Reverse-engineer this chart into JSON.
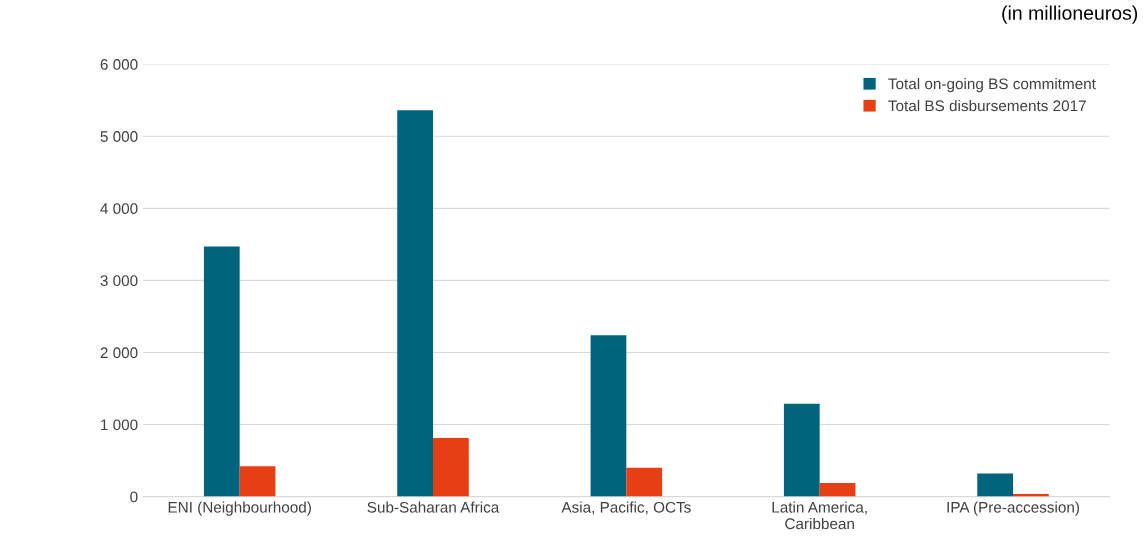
{
  "chart_data": {
    "type": "bar",
    "subtitle": "(in millioneuros)",
    "categories": [
      "ENI (Neighbourhood)",
      "Sub-Saharan Africa",
      "Asia, Pacific, OCTs",
      "Latin America,\nCaribbean",
      "IPA (Pre-accession)"
    ],
    "series": [
      {
        "name": "Total on-going BS commitment",
        "color": "#00657c",
        "values": [
          3470,
          5360,
          2240,
          1290,
          320
        ]
      },
      {
        "name": "Total BS disbursements 2017",
        "color": "#e63f13",
        "values": [
          420,
          815,
          400,
          190,
          35
        ]
      }
    ],
    "ylim": [
      0,
      6000
    ],
    "yticks": [
      {
        "value": 0,
        "label": "0"
      },
      {
        "value": 1000,
        "label": "1 000"
      },
      {
        "value": 2000,
        "label": "2 000"
      },
      {
        "value": 3000,
        "label": "3 000"
      },
      {
        "value": 4000,
        "label": "4 000"
      },
      {
        "value": 5000,
        "label": "5 000"
      },
      {
        "value": 6000,
        "label": "6 000"
      }
    ],
    "grid": "y",
    "legend": "top right"
  }
}
